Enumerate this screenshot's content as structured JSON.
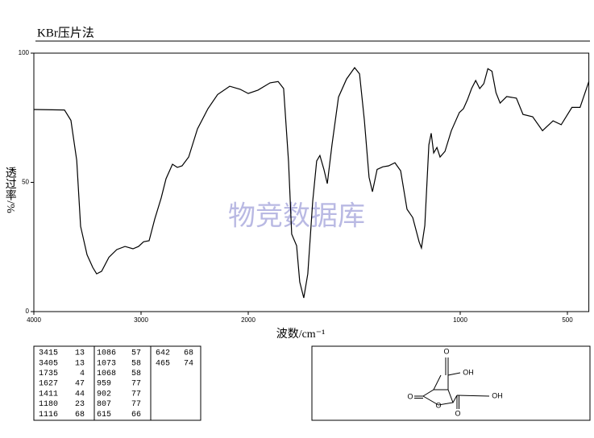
{
  "chart_data": {
    "type": "line",
    "title": "KBr压片法",
    "xlabel": "波数/cm⁻¹",
    "ylabel": "透过率/%",
    "watermark": "物竞数据库",
    "xlim": [
      4000,
      400
    ],
    "xticks": [
      4000,
      3000,
      2000,
      1000,
      500
    ],
    "ylim": [
      0,
      100
    ],
    "yticks": [
      0,
      50,
      100
    ],
    "grid": false,
    "series": [
      {
        "color": "#000000",
        "x": [
          4000,
          3714,
          3654,
          3600,
          3564,
          3504,
          3450,
          3414,
          3368,
          3300,
          3226,
          3150,
          3075,
          3023,
          2977,
          2925,
          2872,
          2812,
          2767,
          2707,
          2662,
          2617,
          2556,
          2474,
          2376,
          2286,
          2173,
          2075,
          2000,
          1954,
          1897,
          1859,
          1833,
          1810,
          1795,
          1772,
          1757,
          1738,
          1719,
          1696,
          1677,
          1662,
          1643,
          1627,
          1605,
          1574,
          1536,
          1498,
          1475,
          1452,
          1430,
          1414,
          1392,
          1365,
          1338,
          1308,
          1281,
          1251,
          1224,
          1194,
          1183,
          1167,
          1148,
          1137,
          1125,
          1110,
          1095,
          1072,
          1042,
          1004,
          985,
          966,
          947,
          928,
          909,
          890,
          871,
          852,
          833,
          814,
          783,
          738,
          707,
          662,
          616,
          567,
          529,
          479,
          441,
          400
        ],
        "values": [
          78.2,
          78,
          74,
          58.5,
          33,
          22,
          17,
          14.6,
          15.6,
          21,
          24,
          25.2,
          24.3,
          25.2,
          27,
          27.4,
          35.8,
          44,
          51.4,
          57,
          55.8,
          56.4,
          59.8,
          70.7,
          78.5,
          84,
          87.2,
          86,
          84.4,
          85.7,
          88.5,
          89,
          86.3,
          58,
          30,
          25.5,
          11.5,
          5.3,
          14.6,
          42.7,
          58.3,
          60.4,
          55,
          49.5,
          64.5,
          83,
          90,
          94.4,
          92,
          74,
          52,
          46.4,
          55,
          56,
          56.4,
          57.6,
          54.5,
          39.6,
          36.4,
          27,
          24.6,
          33.3,
          64.5,
          69,
          61.4,
          63.5,
          59.8,
          62,
          70,
          77,
          78.5,
          82,
          86.3,
          89.4,
          86.3,
          88.2,
          94,
          93,
          84.7,
          80.7,
          83.2,
          82.6,
          76.3,
          75.4,
          70,
          73.8,
          72.3,
          79,
          79,
          89
        ]
      }
    ]
  },
  "table": {
    "rows": [
      [
        "3415",
        "13",
        "1086",
        "57",
        "642",
        "68"
      ],
      [
        "3405",
        "13",
        "1073",
        "58",
        "465",
        "74"
      ],
      [
        "1735",
        "4",
        "1068",
        "58"
      ],
      [
        "1627",
        "47",
        "959",
        "77"
      ],
      [
        "1411",
        "44",
        "902",
        "77"
      ],
      [
        "1180",
        "23",
        "807",
        "77"
      ],
      [
        "1116",
        "68",
        "615",
        "66"
      ]
    ]
  },
  "structure": {
    "labels": [
      "O",
      "OH",
      "OH",
      "O",
      "O",
      "O"
    ]
  }
}
